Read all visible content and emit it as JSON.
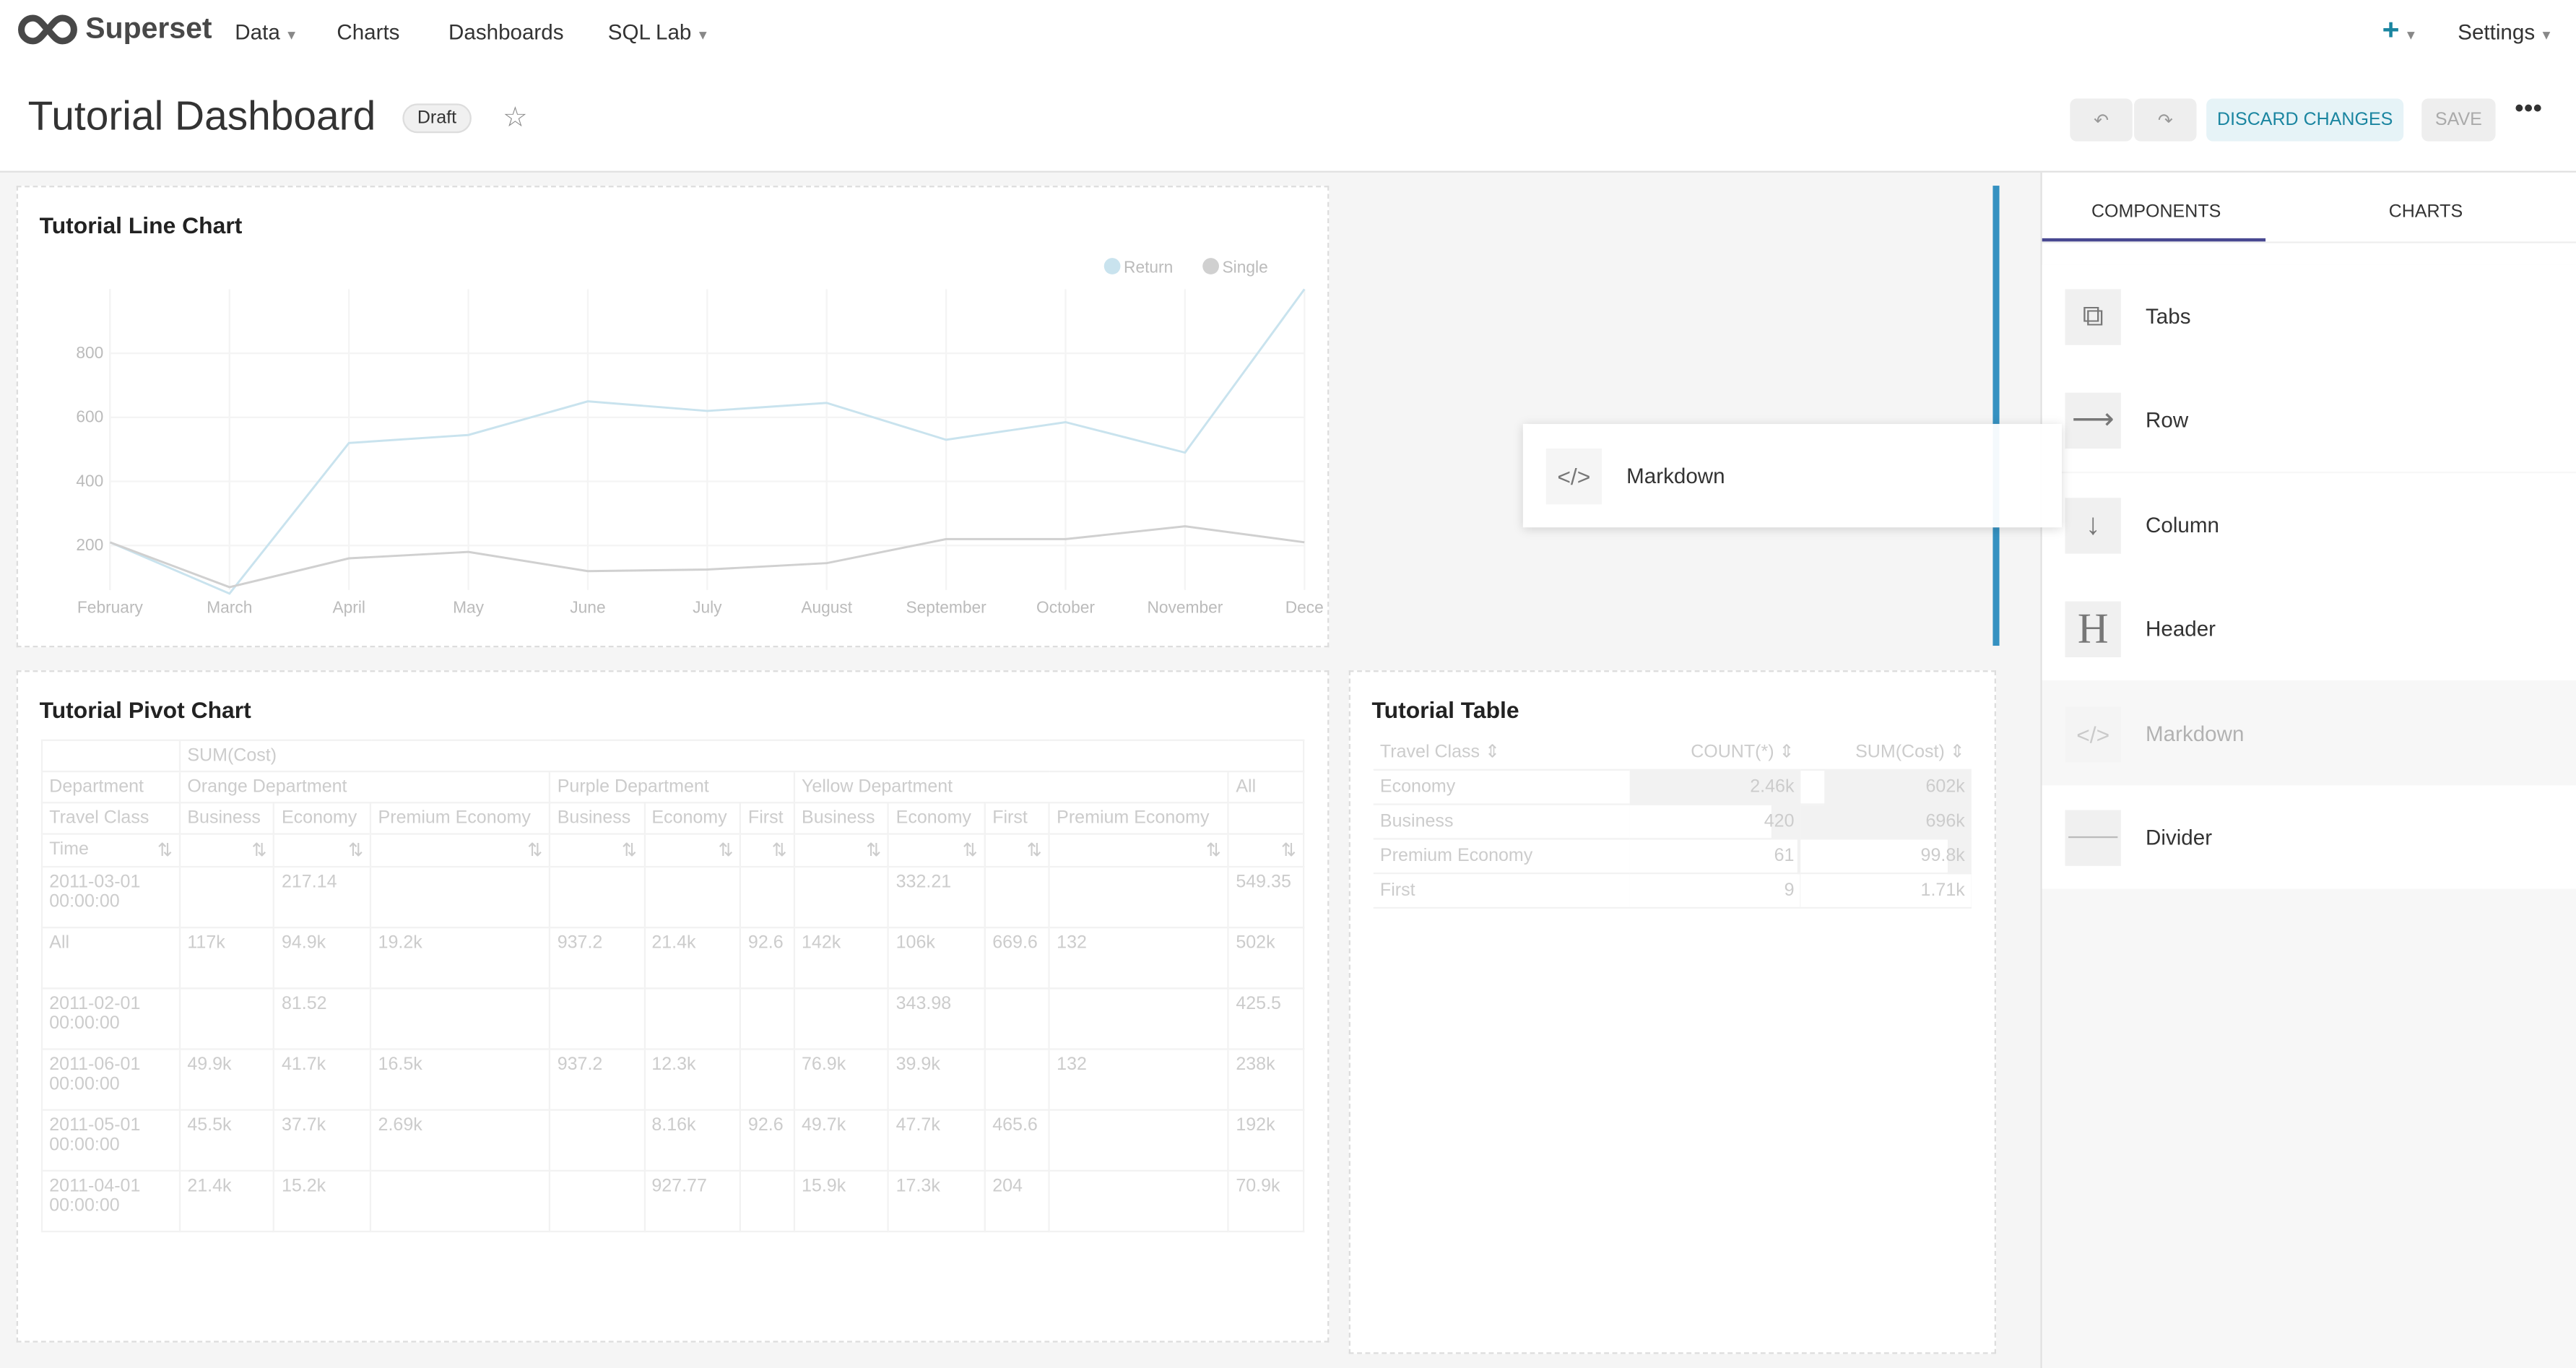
{
  "nav": {
    "brand": "Superset",
    "items": [
      {
        "label": "Data",
        "dropdown": true
      },
      {
        "label": "Charts"
      },
      {
        "label": "Dashboards"
      },
      {
        "label": "SQL Lab",
        "dropdown": true
      }
    ],
    "plus_icon": "plus-icon",
    "settings": "Settings"
  },
  "header": {
    "title": "Tutorial Dashboard",
    "badge": "Draft",
    "discard": "DISCARD CHANGES",
    "save": "SAVE",
    "accent": "#1a85a0"
  },
  "drag_preview": {
    "label": "Markdown"
  },
  "sidebar": {
    "tabs": [
      "COMPONENTS",
      "CHARTS"
    ],
    "active_tab": "COMPONENTS",
    "components": [
      {
        "label": "Tabs",
        "icon": "tabs-icon"
      },
      {
        "label": "Row",
        "icon": "arrow-right-icon"
      },
      {
        "label": "Column",
        "icon": "arrow-down-icon"
      },
      {
        "label": "Header",
        "icon": "header-icon"
      },
      {
        "label": "Markdown",
        "icon": "code-icon",
        "dragging": true
      },
      {
        "label": "Divider",
        "icon": "divider-icon"
      }
    ]
  },
  "line_chart": {
    "title": "Tutorial Line Chart",
    "chart_data": {
      "type": "line",
      "categories": [
        "February",
        "March",
        "April",
        "May",
        "June",
        "July",
        "August",
        "September",
        "October",
        "November",
        "Dece"
      ],
      "series": [
        {
          "name": "Return",
          "color": "#c9e3ee",
          "values": [
            210,
            50,
            520,
            545,
            650,
            620,
            645,
            530,
            585,
            490,
            1000
          ]
        },
        {
          "name": "Single",
          "color": "#d0d0d0",
          "values": [
            210,
            70,
            160,
            180,
            120,
            125,
            145,
            220,
            220,
            260,
            210
          ]
        }
      ],
      "yticks": [
        200,
        400,
        600,
        800
      ],
      "ylim": [
        0,
        1000
      ],
      "legend": "top-right",
      "grid": true
    }
  },
  "pivot": {
    "title": "Tutorial Pivot Chart",
    "metric": "SUM(Cost)",
    "dept_label": "Department",
    "departments": [
      {
        "name": "Orange Department",
        "span": 3
      },
      {
        "name": "Purple Department",
        "span": 3
      },
      {
        "name": "Yellow Department",
        "span": 4
      },
      {
        "name": "All",
        "span": 1
      }
    ],
    "class_label": "Travel Class",
    "classes": [
      "Business",
      "Economy",
      "Premium Economy",
      "Business",
      "Economy",
      "First",
      "Business",
      "Economy",
      "First",
      "Premium Economy",
      ""
    ],
    "time_label": "Time",
    "rows": [
      {
        "label": "2011-03-01 00:00:00",
        "cells": [
          "",
          "217.14",
          "",
          "",
          "",
          "",
          "",
          "332.21",
          "",
          "",
          "549.35"
        ]
      },
      {
        "label": "All",
        "cells": [
          "117k",
          "94.9k",
          "19.2k",
          "937.2",
          "21.4k",
          "92.6",
          "142k",
          "106k",
          "669.6",
          "132",
          "502k"
        ]
      },
      {
        "label": "2011-02-01 00:00:00",
        "cells": [
          "",
          "81.52",
          "",
          "",
          "",
          "",
          "",
          "343.98",
          "",
          "",
          "425.5"
        ]
      },
      {
        "label": "2011-06-01 00:00:00",
        "cells": [
          "49.9k",
          "41.7k",
          "16.5k",
          "937.2",
          "12.3k",
          "",
          "76.9k",
          "39.9k",
          "",
          "132",
          "238k"
        ]
      },
      {
        "label": "2011-05-01 00:00:00",
        "cells": [
          "45.5k",
          "37.7k",
          "2.69k",
          "",
          "8.16k",
          "92.6",
          "49.7k",
          "47.7k",
          "465.6",
          "",
          "192k"
        ]
      },
      {
        "label": "2011-04-01 00:00:00",
        "cells": [
          "21.4k",
          "15.2k",
          "",
          "",
          "927.77",
          "",
          "15.9k",
          "17.3k",
          "204",
          "",
          "70.9k"
        ]
      }
    ]
  },
  "table": {
    "title": "Tutorial Table",
    "columns": [
      "Travel Class",
      "COUNT(*)",
      "SUM(Cost)"
    ],
    "rows": [
      {
        "cls": "Economy",
        "count": "2.46k",
        "sum": "602k",
        "count_frac": 1.0,
        "sum_frac": 0.86
      },
      {
        "cls": "Business",
        "count": "420",
        "sum": "696k",
        "count_frac": 0.17,
        "sum_frac": 1.0
      },
      {
        "cls": "Premium Economy",
        "count": "61",
        "sum": "99.8k",
        "count_frac": 0.02,
        "sum_frac": 0.14
      },
      {
        "cls": "First",
        "count": "9",
        "sum": "1.71k",
        "count_frac": 0.004,
        "sum_frac": 0.002
      }
    ]
  }
}
